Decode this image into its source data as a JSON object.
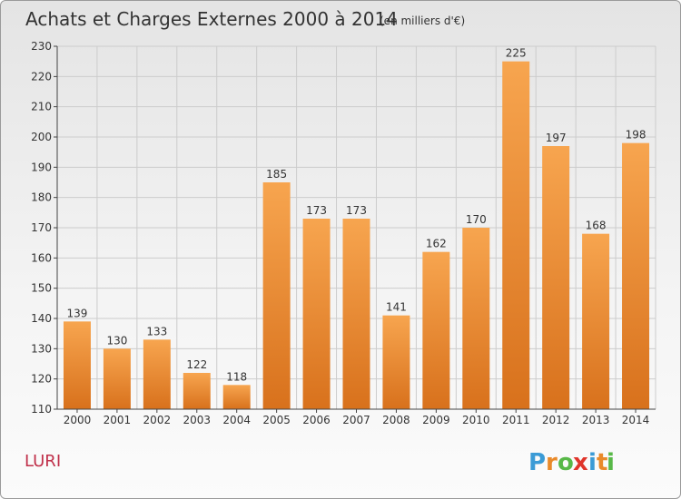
{
  "header": {
    "title": "Achats et Charges Externes 2000 à 2014",
    "subtitle": "(en milliers d'€)"
  },
  "commune_name": "LURI",
  "logo": {
    "letters": [
      "P",
      "r",
      "o",
      "x",
      "i",
      "t",
      "i"
    ],
    "colors": [
      "#3b9bd6",
      "#e98a2a",
      "#58b848",
      "#e0352b",
      "#3b9bd6",
      "#e98a2a",
      "#58b848"
    ]
  },
  "colors": {
    "bar_light": "#f7a54f",
    "bar_dark": "#d8711c",
    "grid": "#cccccc"
  },
  "chart_data": {
    "type": "bar",
    "title": "Achats et Charges Externes 2000 à 2014",
    "subtitle": "(en milliers d'€)",
    "categories": [
      "2000",
      "2001",
      "2002",
      "2003",
      "2004",
      "2005",
      "2006",
      "2007",
      "2008",
      "2009",
      "2010",
      "2011",
      "2012",
      "2013",
      "2014"
    ],
    "values": [
      139,
      130,
      133,
      122,
      118,
      185,
      173,
      173,
      141,
      162,
      170,
      225,
      197,
      168,
      198
    ],
    "data_labels": [
      "139",
      "130",
      "133",
      "122",
      "118",
      "185",
      "173",
      "173",
      "141",
      "162",
      "170",
      "225",
      "197",
      "168",
      "198"
    ],
    "xlabel": "",
    "ylabel": "",
    "ylim": [
      110,
      230
    ],
    "yticks": [
      110,
      120,
      130,
      140,
      150,
      160,
      170,
      180,
      190,
      200,
      210,
      220,
      230
    ],
    "ytick_labels": [
      "110",
      "120",
      "130",
      "140",
      "150",
      "160",
      "170",
      "180",
      "190",
      "200",
      "210",
      "220",
      "230"
    ],
    "grid": true
  }
}
